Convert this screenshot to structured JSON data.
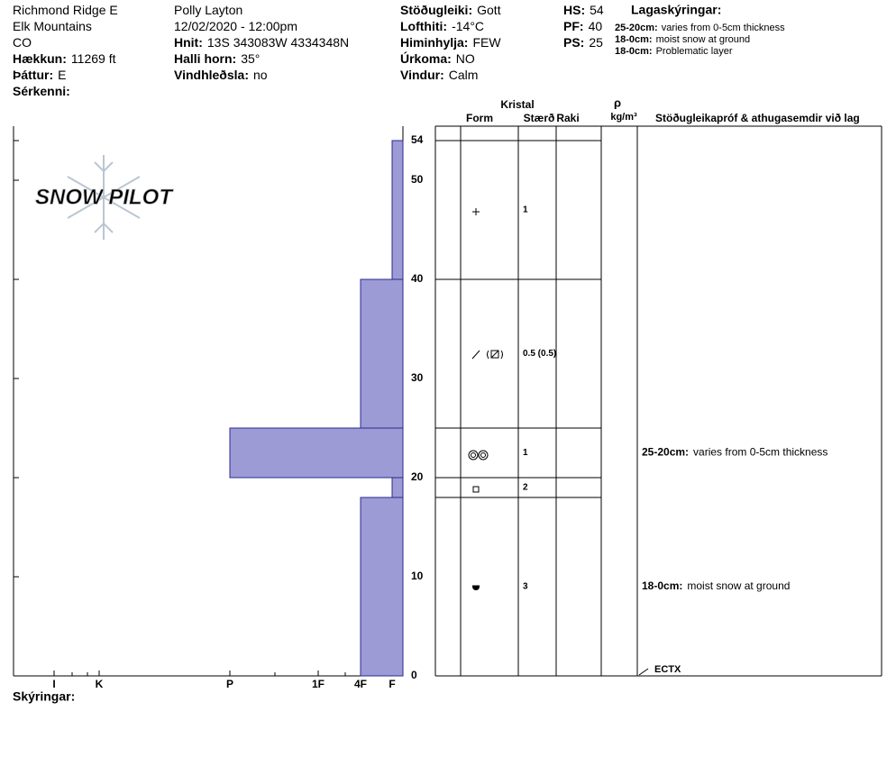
{
  "header": {
    "col1": [
      {
        "value": "Richmond Ridge E"
      },
      {
        "value": "Elk Mountains"
      },
      {
        "value": "CO"
      },
      {
        "label": "Hækkun:",
        "value": "11269 ft"
      },
      {
        "label": "Þáttur:",
        "value": "E"
      },
      {
        "label": "Sérkenni:"
      }
    ],
    "col2": [
      {
        "value": "Polly Layton"
      },
      {
        "value": "12/02/2020 - 12:00pm"
      },
      {
        "label": "Hnit:",
        "value": "13S 343083W 4334348N"
      },
      {
        "label": "Halli horn:",
        "value": "35°"
      },
      {
        "label": "Vindhleðsla:",
        "value": "no"
      }
    ],
    "col3": [
      {
        "label": "Stöðugleiki:",
        "value": "Gott"
      },
      {
        "label": "Lofthiti:",
        "value": "-14°C"
      },
      {
        "label": "Himinhylja:",
        "value": "FEW"
      },
      {
        "label": "Úrkoma:",
        "value": "NO"
      },
      {
        "label": "Vindur:",
        "value": "Calm"
      }
    ],
    "col4": [
      {
        "label": "HS:",
        "value": 54
      },
      {
        "label": "PF:",
        "value": 40
      },
      {
        "label": "PS:",
        "value": 25
      }
    ],
    "legend_title": "Lagaskýringar:",
    "legend": [
      {
        "range": "25-20cm:",
        "text": "varies from 0-5cm thickness"
      },
      {
        "range": "18-0cm:",
        "text": "moist snow at ground"
      },
      {
        "range": "18-0cm:",
        "text": "Problematic layer"
      }
    ]
  },
  "logo": "SNOW PILOT",
  "chart_data": {
    "type": "hardness-profile",
    "ylim": [
      0,
      54
    ],
    "yticks": [
      0,
      10,
      20,
      30,
      40,
      50,
      54
    ],
    "hardness_scale": [
      "I",
      "K",
      "P",
      "1F",
      "4F",
      "F"
    ],
    "color": "#9c9bd6",
    "layers": [
      {
        "top": 54,
        "bottom": 40,
        "hardness": "F",
        "size": "1"
      },
      {
        "top": 40,
        "bottom": 25,
        "hardness": "4F",
        "size": "0.5 (0.5)"
      },
      {
        "top": 25,
        "bottom": 20,
        "hardness": "P",
        "size": "1",
        "comment": {
          "range": "25-20cm:",
          "text": "varies from 0-5cm thickness"
        }
      },
      {
        "top": 20,
        "bottom": 18,
        "hardness": "F",
        "size": "2"
      },
      {
        "top": 18,
        "bottom": 0,
        "hardness": "4F",
        "size": "3",
        "comment": {
          "range": "18-0cm:",
          "text": "moist snow at ground"
        }
      }
    ]
  },
  "table_headers": {
    "kristal": "Kristal",
    "form": "Form",
    "size": "Stærð",
    "moisture": "Raki",
    "rho": "ρ",
    "density_unit": "kg/m³",
    "comments": "Stöðugleikapróf & athugasemdir við lag"
  },
  "stability_test": "ECTX",
  "footer": "Skýringar:"
}
